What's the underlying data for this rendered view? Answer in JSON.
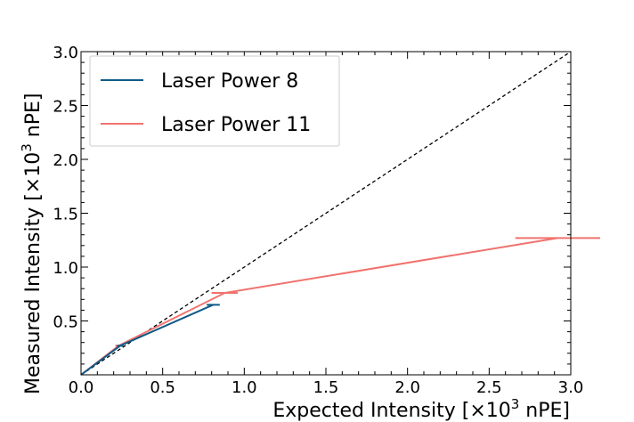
{
  "chart_data": {
    "type": "line",
    "xlabel": "Expected Intensity [×10",
    "xlabel_sup": "3",
    "xlabel_tail": " nPE]",
    "ylabel": "Measured Intensity [×10",
    "ylabel_sup": "3",
    "ylabel_tail": " nPE]",
    "xlim": [
      0.0,
      3.0
    ],
    "ylim": [
      0.0,
      3.0
    ],
    "x_ticks": [
      0.0,
      0.5,
      1.0,
      1.5,
      2.0,
      2.5,
      3.0
    ],
    "x_tick_labels": [
      "0.0",
      "0.5",
      "1.0",
      "1.5",
      "2.0",
      "2.5",
      "3.0"
    ],
    "y_ticks": [
      0.5,
      1.0,
      1.5,
      2.0,
      2.5,
      3.0
    ],
    "y_tick_labels": [
      "0.5",
      "1.0",
      "1.5",
      "2.0",
      "2.5",
      "3.0"
    ],
    "grid": false,
    "legend_position": "top-left",
    "reference_line": {
      "style": "dashed",
      "color": "#000000",
      "x": [
        0,
        3
      ],
      "y": [
        0,
        3
      ]
    },
    "series": [
      {
        "name": "Laser Power 8",
        "color": "#0e5a86",
        "x": [
          0.0,
          0.24,
          0.81
        ],
        "y": [
          0.0,
          0.27,
          0.65
        ],
        "xerr": [
          0.0,
          0.02,
          0.04
        ]
      },
      {
        "name": "Laser Power 11",
        "color": "#f0736e",
        "x": [
          0.0,
          0.23,
          0.88,
          2.92
        ],
        "y": [
          0.0,
          0.27,
          0.76,
          1.27
        ],
        "xerr": [
          0.0,
          0.02,
          0.08,
          0.26
        ]
      }
    ]
  }
}
